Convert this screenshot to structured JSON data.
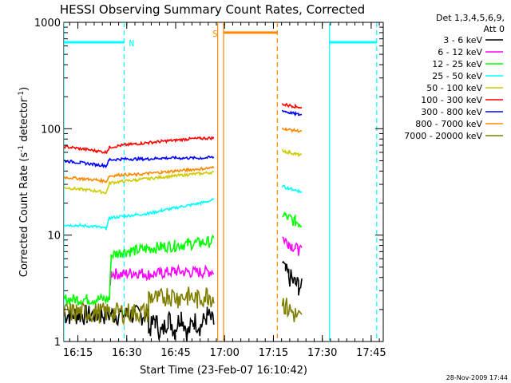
{
  "chart_data": {
    "type": "line",
    "title": "HESSI Observing Summary Count Rates, Corrected",
    "xlabel": "Start Time (23-Feb-07 16:10:42)",
    "ylabel": "Corrected Count Rate (s",
    "ylabel_sup": "-1",
    "ylabel_suffix": " detector",
    "ylabel_sup2": "-1",
    "ylabel_close": ")",
    "x_axis": "minutes after 16:10:42",
    "xlim": [
      0,
      98
    ],
    "ylim": [
      1,
      1000
    ],
    "yscale": "log",
    "xticks": [
      {
        "label": "16:15",
        "x": 4.3
      },
      {
        "label": "16:30",
        "x": 19.3
      },
      {
        "label": "16:45",
        "x": 34.3
      },
      {
        "label": "17:00",
        "x": 49.3
      },
      {
        "label": "17:15",
        "x": 64.3
      },
      {
        "label": "17:30",
        "x": 79.3
      },
      {
        "label": "17:45",
        "x": 94.3
      }
    ],
    "yticks": [
      {
        "label": "1",
        "y": 1
      },
      {
        "label": "10",
        "y": 10
      },
      {
        "label": "100",
        "y": 100
      },
      {
        "label": "1000",
        "y": 1000
      }
    ],
    "legend_header": [
      "Det 1,3,4,5,6,9,",
      "Att 0"
    ],
    "legend_position": "right",
    "series": [
      {
        "name": "3 - 6 keV",
        "color": "#000000",
        "segments": [
          {
            "x": [
              0,
              26,
              26,
              28,
              30,
              32,
              34,
              36,
              38,
              40,
              42,
              44,
              46
            ],
            "y": [
              1.8,
              1.8,
              1.3,
              1.6,
              1.2,
              1.7,
              1.3,
              1.8,
              1.2,
              1.6,
              1.4,
              1.8,
              1.5
            ]
          },
          {
            "x": [
              67,
              68,
              69,
              70,
              71,
              72,
              73
            ],
            "y": [
              5.5,
              4.5,
              4.2,
              3.8,
              3.5,
              3.4,
              3.2
            ]
          }
        ]
      },
      {
        "name": "6 - 12 keV",
        "color": "#ff00ff",
        "segments": [
          {
            "x": [
              14,
              14.5,
              18,
              22,
              26,
              30,
              34,
              38,
              42,
              46
            ],
            "y": [
              3.2,
              4.4,
              4.3,
              4.5,
              4.3,
              4.4,
              4.6,
              4.5,
              4.5,
              4.6
            ]
          },
          {
            "x": [
              67,
              68,
              69,
              70,
              71,
              72,
              73
            ],
            "y": [
              9.5,
              9.0,
              8.5,
              8.0,
              7.6,
              7.3,
              7.0
            ]
          }
        ]
      },
      {
        "name": "12 - 25 keV",
        "color": "#00ff00",
        "segments": [
          {
            "x": [
              0,
              14,
              14.5,
              18,
              22,
              26,
              30,
              34,
              38,
              42,
              46
            ],
            "y": [
              2.5,
              2.5,
              6.5,
              7.0,
              7.2,
              7.5,
              7.8,
              8.0,
              8.3,
              8.5,
              8.8
            ]
          },
          {
            "x": [
              67,
              68,
              69,
              70,
              71,
              72,
              73
            ],
            "y": [
              16,
              15,
              14.5,
              14,
              13.5,
              13,
              12.8
            ]
          }
        ]
      },
      {
        "name": "25 - 50 keV",
        "color": "#00ffff",
        "segments": [
          {
            "x": [
              0,
              5,
              10,
              13,
              14,
              18,
              22,
              26,
              30,
              34,
              38,
              42,
              46
            ],
            "y": [
              12.5,
              12.3,
              12.0,
              11.5,
              14.5,
              15.0,
              15.5,
              16.0,
              17.0,
              18.0,
              19.0,
              20.0,
              21.5
            ]
          },
          {
            "x": [
              67,
              68,
              69,
              70,
              71,
              72,
              73
            ],
            "y": [
              29,
              28,
              27.5,
              27,
              26.5,
              26,
              25.5
            ]
          }
        ]
      },
      {
        "name": "50 - 100 keV",
        "color": "#cccc00",
        "segments": [
          {
            "x": [
              0,
              5,
              10,
              13,
              14,
              18,
              22,
              26,
              30,
              34,
              38,
              42,
              46
            ],
            "y": [
              28,
              27,
              26,
              25,
              31,
              32,
              33,
              34,
              35,
              36,
              37,
              38,
              39
            ]
          },
          {
            "x": [
              67,
              68,
              69,
              70,
              71,
              72,
              73
            ],
            "y": [
              63,
              61,
              60,
              59,
              58,
              57,
              56
            ]
          }
        ]
      },
      {
        "name": "100 - 300 keV",
        "color": "#ff0000",
        "segments": [
          {
            "x": [
              0,
              5,
              10,
              13,
              14,
              18,
              22,
              26,
              30,
              34,
              38,
              42,
              46
            ],
            "y": [
              68,
              65,
              62,
              60,
              67,
              70,
              72,
              74,
              76,
              78,
              80,
              81,
              82
            ]
          },
          {
            "x": [
              67,
              68,
              69,
              70,
              71,
              72,
              73
            ],
            "y": [
              172,
              168,
              166,
              164,
              162,
              160,
              158
            ]
          }
        ]
      },
      {
        "name": "300 - 800 keV",
        "color": "#0000ff",
        "segments": [
          {
            "x": [
              0,
              5,
              10,
              13,
              14,
              18,
              22,
              26,
              30,
              34,
              38,
              42,
              46
            ],
            "y": [
              50,
              48,
              46,
              45,
              51,
              52,
              52,
              52,
              53,
              53,
              53,
              53,
              54
            ]
          },
          {
            "x": [
              67,
              68,
              69,
              70,
              71,
              72,
              73
            ],
            "y": [
              150,
              145,
              142,
              140,
              138,
              136,
              135
            ]
          }
        ]
      },
      {
        "name": "800 - 7000 keV",
        "color": "#ff8800",
        "segments": [
          {
            "x": [
              0,
              5,
              10,
              13,
              14,
              18,
              22,
              26,
              30,
              34,
              38,
              42,
              46
            ],
            "y": [
              35,
              34,
              33,
              32,
              36,
              37,
              37,
              38,
              39,
              40,
              41,
              42,
              43
            ]
          },
          {
            "x": [
              67,
              68,
              69,
              70,
              71,
              72,
              73
            ],
            "y": [
              102,
              100,
              98,
              97,
              96,
              95,
              94
            ]
          }
        ]
      },
      {
        "name": "7000 - 20000 keV",
        "color": "#808000",
        "segments": [
          {
            "x": [
              0,
              26,
              26,
              29,
              32,
              35,
              38,
              41,
              44,
              46
            ],
            "y": [
              1.9,
              1.9,
              2.7,
              2.5,
              2.8,
              2.6,
              2.7,
              2.5,
              2.8,
              2.6
            ]
          },
          {
            "x": [
              67,
              68,
              69,
              70,
              71,
              72,
              73
            ],
            "y": [
              2.4,
              2.2,
              2.0,
              1.9,
              1.8,
              1.7,
              1.6
            ]
          }
        ]
      }
    ],
    "markers": [
      {
        "label": "N",
        "color": "#00ffff",
        "y": 650,
        "x_start": 0,
        "x_end": 18.5
      },
      {
        "label": "S",
        "color": "#ff8800",
        "y": 800,
        "x_start": 49,
        "x_end": 65.5
      },
      {
        "label": "",
        "color": "#00ffff",
        "y": 650,
        "x_start": 81.5,
        "x_end": 96
      }
    ],
    "vlines": [
      {
        "x": 0,
        "color": "#00ffff",
        "style": "solid"
      },
      {
        "x": 18.5,
        "color": "#00ffff",
        "style": "dashed"
      },
      {
        "x": 47.2,
        "color": "#ff8800",
        "style": "solid"
      },
      {
        "x": 49,
        "color": "#ff8800",
        "style": "solid"
      },
      {
        "x": 65.5,
        "color": "#ff8800",
        "style": "dashed"
      },
      {
        "x": 81.5,
        "color": "#00ffff",
        "style": "solid"
      },
      {
        "x": 96,
        "color": "#00ffff",
        "style": "dashed"
      }
    ],
    "footer": "28-Nov-2009 17:44"
  }
}
